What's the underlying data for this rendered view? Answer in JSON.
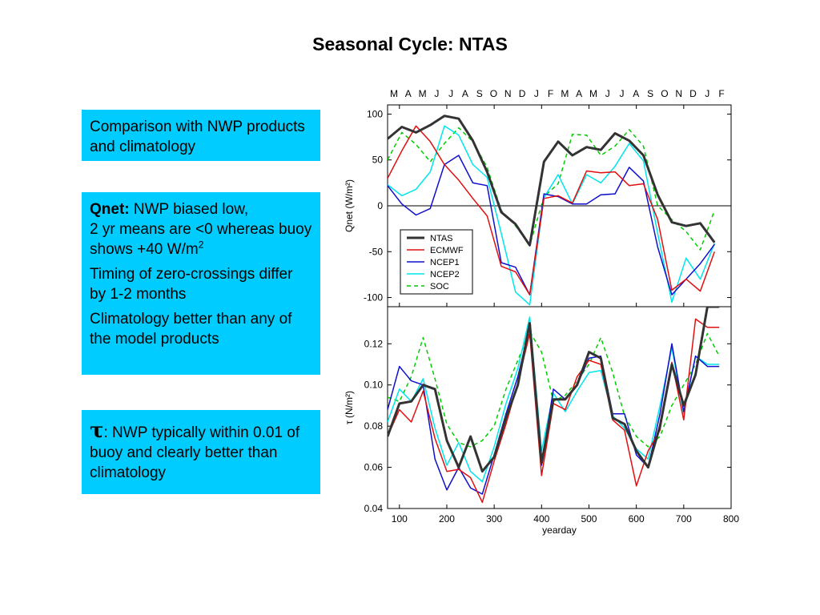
{
  "slide": {
    "title": "Seasonal Cycle: NTAS"
  },
  "box1": {
    "text": "Comparison with NWP products and climatology"
  },
  "box2": {
    "bold": "Qnet:",
    "line1": " NWP biased low,",
    "line2": "2 yr means are <0 whereas buoy shows +40 W/m",
    "sup": "2",
    "para2": "Timing of zero-crossings differ by 1-2 months",
    "para3": "Climatology better than any of the model products"
  },
  "box3": {
    "symbol": "τ",
    "text": ": NWP typically within 0.01 of buoy and clearly better than climatology"
  },
  "colors": {
    "box_bg": "#00ccff",
    "NTAS": "#333333",
    "ECMWF": "#e01010",
    "NCEP1": "#1010cc",
    "NCEP2": "#00e5ee",
    "SOC": "#00cc00"
  },
  "chart_data": [
    {
      "type": "line",
      "ylabel": "Qnet (W/m²)",
      "ylim": [
        -110,
        110
      ],
      "yticks": [
        100,
        50,
        0,
        -50,
        -100
      ],
      "xlim": [
        75,
        800
      ],
      "month_labels": [
        "M",
        "A",
        "M",
        "J",
        "J",
        "A",
        "S",
        "O",
        "N",
        "D",
        "J",
        "F",
        "M",
        "A",
        "M",
        "J",
        "J",
        "A",
        "S",
        "O",
        "N",
        "D",
        "J",
        "F"
      ],
      "legend_position": "lower-left",
      "x": [
        75,
        105,
        135,
        165,
        195,
        225,
        255,
        285,
        315,
        345,
        375,
        405,
        435,
        465,
        495,
        525,
        555,
        585,
        615,
        645,
        675,
        705,
        735,
        765
      ],
      "series": [
        {
          "name": "NTAS",
          "style": "thick",
          "values": [
            73,
            86,
            80,
            88,
            98,
            95,
            71,
            37,
            -7,
            -20,
            -43,
            48,
            70,
            55,
            64,
            61,
            79,
            71,
            55,
            12,
            -18,
            -22,
            -19,
            -40
          ]
        },
        {
          "name": "ECMWF",
          "style": "solid",
          "values": [
            30,
            60,
            87,
            70,
            45,
            28,
            8,
            -11,
            -66,
            -72,
            -97,
            8,
            11,
            3,
            38,
            36,
            37,
            22,
            24,
            -15,
            -92,
            -80,
            -93,
            -50
          ]
        },
        {
          "name": "NCEP1",
          "style": "solid",
          "values": [
            22,
            2,
            -10,
            -3,
            45,
            55,
            25,
            22,
            -62,
            -67,
            -97,
            13,
            10,
            2,
            2,
            12,
            13,
            42,
            27,
            -45,
            -97,
            -80,
            -63,
            -42
          ]
        },
        {
          "name": "NCEP2",
          "style": "solid",
          "values": [
            23,
            11,
            18,
            37,
            87,
            77,
            45,
            31,
            -30,
            -94,
            -108,
            9,
            34,
            2,
            34,
            25,
            43,
            68,
            49,
            -30,
            -105,
            -57,
            -80,
            -41
          ]
        },
        {
          "name": "SOC",
          "style": "dashed",
          "values": [
            50,
            80,
            67,
            48,
            68,
            85,
            70,
            42,
            -5,
            -22,
            -43,
            10,
            24,
            78,
            77,
            55,
            65,
            83,
            65,
            0,
            -15,
            -28,
            -48,
            -5
          ]
        }
      ]
    },
    {
      "type": "line",
      "ylabel": "τ (N/m²)",
      "xlabel": "yearday",
      "ylim": [
        0.04,
        0.138
      ],
      "yticks": [
        0.12,
        0.1,
        0.08,
        0.06,
        0.04
      ],
      "xlim": [
        75,
        800
      ],
      "xticks": [
        100,
        200,
        300,
        400,
        500,
        600,
        700,
        800
      ],
      "x": [
        75,
        100,
        125,
        150,
        175,
        200,
        225,
        250,
        275,
        300,
        325,
        350,
        375,
        400,
        425,
        450,
        475,
        500,
        525,
        550,
        575,
        600,
        625,
        650,
        675,
        700,
        725,
        750,
        775
      ],
      "series": [
        {
          "name": "NTAS",
          "style": "thick",
          "values": [
            0.075,
            0.091,
            0.092,
            0.1,
            0.098,
            0.073,
            0.06,
            0.075,
            0.058,
            0.065,
            0.084,
            0.1,
            0.13,
            0.062,
            0.093,
            0.093,
            0.1,
            0.116,
            0.113,
            0.084,
            0.081,
            0.068,
            0.06,
            0.08,
            0.11,
            0.09,
            0.105,
            0.138,
            0.138
          ]
        },
        {
          "name": "ECMWF",
          "style": "solid",
          "values": [
            0.075,
            0.088,
            0.082,
            0.097,
            0.074,
            0.058,
            0.059,
            0.055,
            0.043,
            0.063,
            0.081,
            0.101,
            0.125,
            0.056,
            0.091,
            0.088,
            0.104,
            0.112,
            0.11,
            0.083,
            0.078,
            0.051,
            0.068,
            0.078,
            0.111,
            0.083,
            0.132,
            0.128,
            0.128
          ]
        },
        {
          "name": "NCEP1",
          "style": "solid",
          "values": [
            0.088,
            0.109,
            0.102,
            0.1,
            0.064,
            0.049,
            0.06,
            0.05,
            0.047,
            0.066,
            0.086,
            0.104,
            0.128,
            0.061,
            0.098,
            0.093,
            0.1,
            0.113,
            0.114,
            0.086,
            0.086,
            0.066,
            0.06,
            0.086,
            0.12,
            0.087,
            0.114,
            0.109,
            0.109
          ]
        },
        {
          "name": "NCEP2",
          "style": "solid",
          "values": [
            0.082,
            0.098,
            0.092,
            0.103,
            0.079,
            0.061,
            0.072,
            0.058,
            0.053,
            0.07,
            0.091,
            0.108,
            0.133,
            0.068,
            0.096,
            0.087,
            0.097,
            0.106,
            0.107,
            0.085,
            0.079,
            0.069,
            0.064,
            0.09,
            0.118,
            0.086,
            0.114,
            0.11,
            0.11
          ]
        },
        {
          "name": "SOC",
          "style": "dashed",
          "values": [
            0.094,
            0.092,
            0.104,
            0.123,
            0.103,
            0.081,
            0.072,
            0.07,
            0.073,
            0.08,
            0.098,
            0.112,
            0.126,
            0.116,
            0.092,
            0.095,
            0.102,
            0.11,
            0.123,
            0.106,
            0.085,
            0.075,
            0.07,
            0.075,
            0.09,
            0.1,
            0.11,
            0.125,
            0.114
          ]
        }
      ]
    }
  ]
}
